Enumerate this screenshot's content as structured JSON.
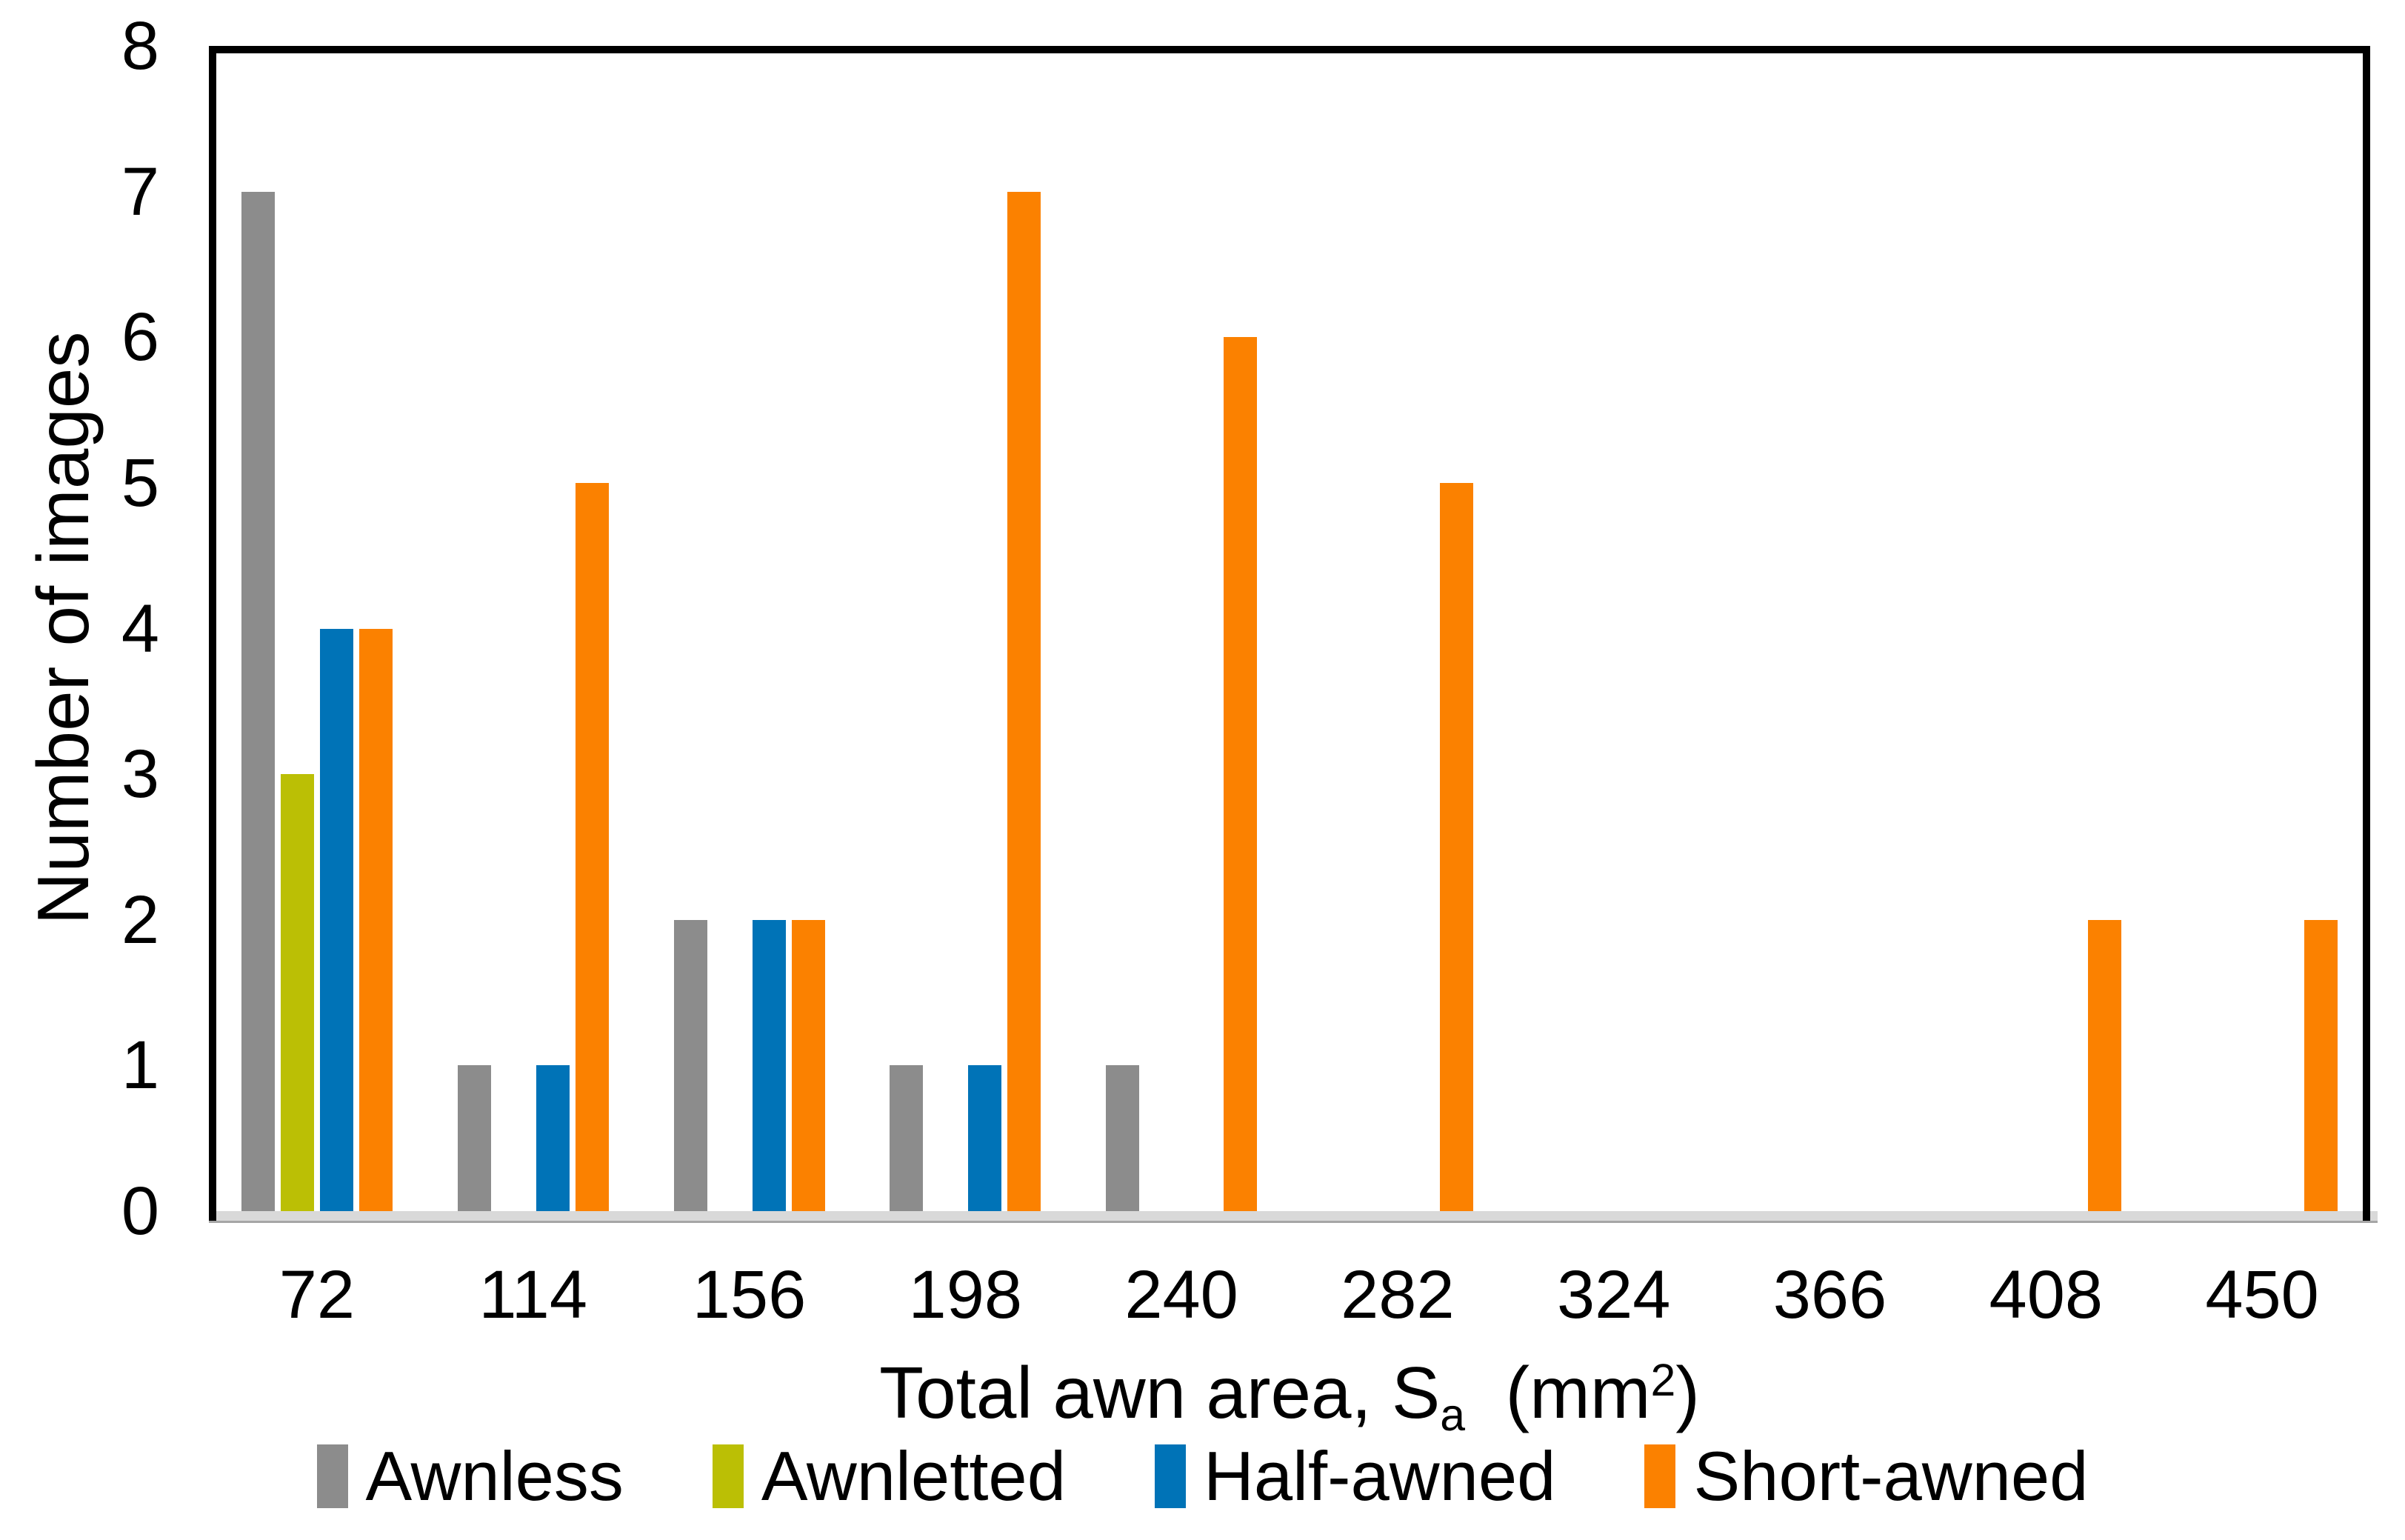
{
  "chart": {
    "background": "#FFFFFF",
    "frame_color": "#000000",
    "baseline_fill": "#D9D9D9",
    "baseline_edge": "#A6A6A6"
  },
  "chart_data": {
    "type": "bar",
    "title": "",
    "xlabel": "Total awn area, Sa (mm2)",
    "xlabel_parts": {
      "prefix": "Total awn area, S",
      "subscript": "a",
      "mid": "  (mm",
      "superscript": "2",
      "suffix": ")"
    },
    "ylabel": "Number of images",
    "categories": [
      "72",
      "114",
      "156",
      "198",
      "240",
      "282",
      "324",
      "366",
      "408",
      "450"
    ],
    "series": [
      {
        "name": "Awnless",
        "color": "#8C8C8C",
        "values": [
          7,
          1,
          2,
          1,
          1,
          0,
          0,
          0,
          0,
          0
        ]
      },
      {
        "name": "Awnletted",
        "color": "#BBBF05",
        "values": [
          3,
          0,
          0,
          0,
          0,
          0,
          0,
          0,
          0,
          0
        ]
      },
      {
        "name": "Half-awned",
        "color": "#0073B7",
        "values": [
          4,
          1,
          2,
          1,
          0,
          0,
          0,
          0,
          0,
          0
        ]
      },
      {
        "name": "Short-awned",
        "color": "#FB8100",
        "values": [
          4,
          5,
          2,
          7,
          6,
          5,
          0,
          0,
          2,
          2
        ]
      }
    ],
    "ylim": [
      0,
      8
    ],
    "y_ticks": [
      0,
      1,
      2,
      3,
      4,
      5,
      6,
      7,
      8
    ],
    "grid": false,
    "legend_position": "bottom"
  }
}
